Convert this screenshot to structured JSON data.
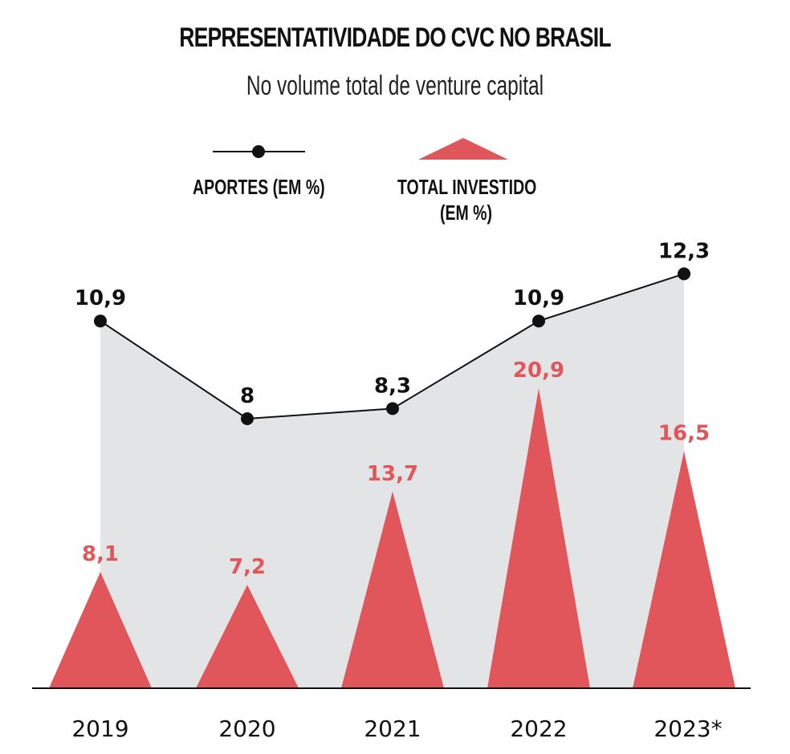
{
  "chart_data": {
    "type": "line+triangle-bar",
    "title": "REPRESENTATIVIDADE DO CVC NO BRASIL",
    "subtitle": "No volume total de venture capital",
    "categories": [
      "2019",
      "2020",
      "2021",
      "2022",
      "2023*"
    ],
    "series": [
      {
        "name": "APORTES (EM %)",
        "type": "line",
        "values": [
          10.9,
          8,
          8.3,
          10.9,
          12.3
        ],
        "labels": [
          "10,9",
          "8",
          "8,3",
          "10,9",
          "12,3"
        ],
        "color": "#111111"
      },
      {
        "name": "TOTAL INVESTIDO (EM %)",
        "type": "triangle-bar",
        "values": [
          8.1,
          7.2,
          13.7,
          20.9,
          16.5
        ],
        "labels": [
          "8,1",
          "7,2",
          "13,7",
          "20,9",
          "16,5"
        ],
        "color": "#e0565b"
      }
    ],
    "area_color": "#e3e4e6",
    "legend": {
      "placement": "top",
      "line_label": "APORTES (EM %)",
      "triangle_label_1": "TOTAL INVESTIDO",
      "triangle_label_2": "(EM %)"
    },
    "grid": false
  }
}
